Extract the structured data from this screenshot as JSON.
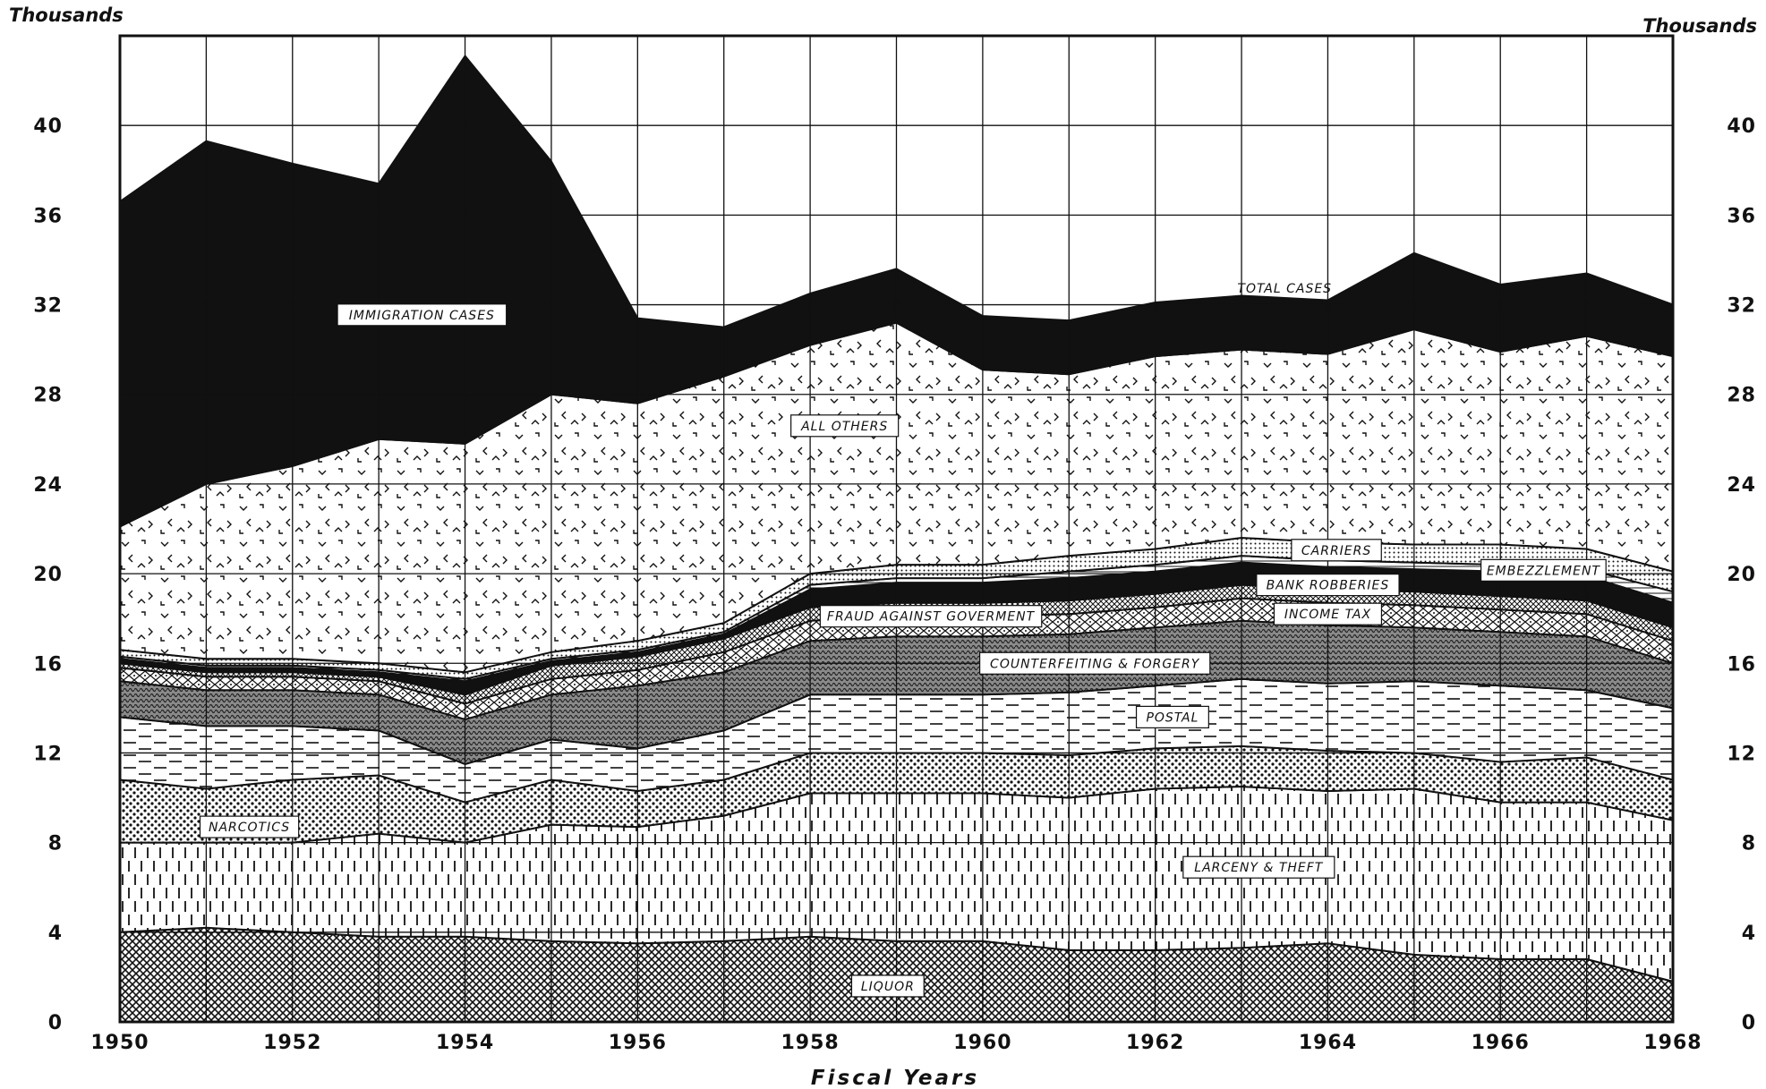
{
  "chart_data": {
    "type": "area",
    "title": "",
    "xlabel": "Fiscal Years",
    "ylabel_left": "Thousands",
    "ylabel_right": "Thousands",
    "x": [
      1950,
      1951,
      1952,
      1953,
      1954,
      1955,
      1956,
      1957,
      1958,
      1959,
      1960,
      1961,
      1962,
      1963,
      1964,
      1965,
      1966,
      1967,
      1968
    ],
    "x_ticks": [
      "1950",
      "1952",
      "1954",
      "1956",
      "1958",
      "1960",
      "1962",
      "1964",
      "1966",
      "1968"
    ],
    "y_ticks": [
      "0",
      "4",
      "8",
      "12",
      "16",
      "20",
      "24",
      "28",
      "32",
      "36",
      "40"
    ],
    "ylim": [
      0,
      44
    ],
    "grid": true,
    "stacked": true,
    "series": [
      {
        "name": "LIQUOR",
        "values": [
          4.0,
          4.2,
          4.0,
          3.8,
          3.8,
          3.6,
          3.5,
          3.6,
          3.8,
          3.6,
          3.6,
          3.2,
          3.2,
          3.3,
          3.5,
          3.0,
          2.8,
          2.8,
          1.8
        ]
      },
      {
        "name": "LARCENY & THEFT",
        "values": [
          4.0,
          3.8,
          4.0,
          4.6,
          4.2,
          5.2,
          5.2,
          5.6,
          6.4,
          6.6,
          6.6,
          6.8,
          7.2,
          7.2,
          6.8,
          7.4,
          7.0,
          7.0,
          7.2
        ]
      },
      {
        "name": "NARCOTICS",
        "values": [
          2.8,
          2.4,
          2.8,
          2.6,
          1.8,
          2.0,
          1.6,
          1.6,
          1.8,
          1.8,
          1.8,
          1.9,
          1.8,
          1.8,
          1.8,
          1.6,
          1.8,
          2.0,
          1.8
        ]
      },
      {
        "name": "POSTAL",
        "values": [
          2.8,
          2.8,
          2.4,
          2.0,
          1.7,
          1.8,
          1.9,
          2.2,
          2.6,
          2.6,
          2.6,
          2.8,
          2.8,
          3.0,
          3.0,
          3.2,
          3.4,
          3.0,
          3.2
        ]
      },
      {
        "name": "COUNTERFEITING & FORGERY",
        "values": [
          1.6,
          1.6,
          1.6,
          1.6,
          2.0,
          2.0,
          2.8,
          2.6,
          2.4,
          2.6,
          2.6,
          2.6,
          2.6,
          2.6,
          2.6,
          2.4,
          2.4,
          2.4,
          2.0
        ]
      },
      {
        "name": "INCOME TAX",
        "values": [
          0.6,
          0.6,
          0.6,
          0.6,
          0.7,
          0.7,
          0.7,
          0.9,
          0.9,
          0.9,
          0.9,
          0.9,
          0.9,
          1.0,
          1.0,
          1.0,
          1.0,
          1.0,
          1.0
        ]
      },
      {
        "name": "FRAUD AGAINST GOVERMENT",
        "values": [
          0.2,
          0.2,
          0.2,
          0.2,
          0.4,
          0.6,
          0.6,
          0.6,
          0.6,
          0.6,
          0.6,
          0.6,
          0.6,
          0.6,
          0.6,
          0.6,
          0.6,
          0.6,
          0.6
        ]
      },
      {
        "name": "EMBEZZLEMENT",
        "values": [
          0.2,
          0.2,
          0.2,
          0.2,
          0.6,
          0.2,
          0.2,
          0.2,
          0.8,
          0.9,
          0.9,
          1.0,
          1.0,
          1.0,
          1.0,
          1.0,
          1.1,
          1.1,
          1.1
        ]
      },
      {
        "name": "BANK ROBBERIES",
        "values": [
          0.1,
          0.1,
          0.1,
          0.1,
          0.1,
          0.1,
          0.1,
          0.1,
          0.2,
          0.2,
          0.2,
          0.3,
          0.3,
          0.3,
          0.3,
          0.3,
          0.3,
          0.3,
          0.5
        ]
      },
      {
        "name": "CARRIERS",
        "values": [
          0.3,
          0.3,
          0.3,
          0.3,
          0.3,
          0.3,
          0.4,
          0.4,
          0.5,
          0.6,
          0.6,
          0.7,
          0.7,
          0.8,
          0.8,
          0.8,
          0.9,
          0.9,
          0.9
        ]
      },
      {
        "name": "ALL OTHERS",
        "values": [
          5.5,
          7.8,
          8.6,
          10.0,
          10.2,
          11.5,
          10.6,
          11.0,
          10.2,
          10.8,
          8.7,
          8.1,
          8.6,
          8.4,
          8.4,
          9.6,
          8.6,
          9.5,
          9.6
        ]
      },
      {
        "name": "IMMIGRATION CASES",
        "values": [
          14.5,
          15.3,
          13.5,
          11.4,
          17.3,
          10.4,
          3.8,
          2.2,
          2.3,
          2.4,
          2.4,
          2.4,
          2.4,
          2.4,
          2.4,
          3.4,
          3.0,
          2.8,
          2.3
        ]
      }
    ],
    "total_cases_label": "TOTAL CASES",
    "labels": {
      "immigration": "IMMIGRATION CASES",
      "all_others": "ALL OTHERS",
      "carriers": "CARRIERS",
      "bank": "BANK ROBBERIES",
      "embezzlement": "EMBEZZLEMENT",
      "fraud": "FRAUD AGAINST GOVERMENT",
      "income_tax": "INCOME TAX",
      "counterfeiting": "COUNTERFEITING & FORGERY",
      "postal": "POSTAL",
      "narcotics": "NARCOTICS",
      "larceny": "LARCENY & THEFT",
      "liquor": "LIQUOR"
    },
    "colors": {
      "ink": "#111111",
      "paper": "#ffffff"
    }
  }
}
